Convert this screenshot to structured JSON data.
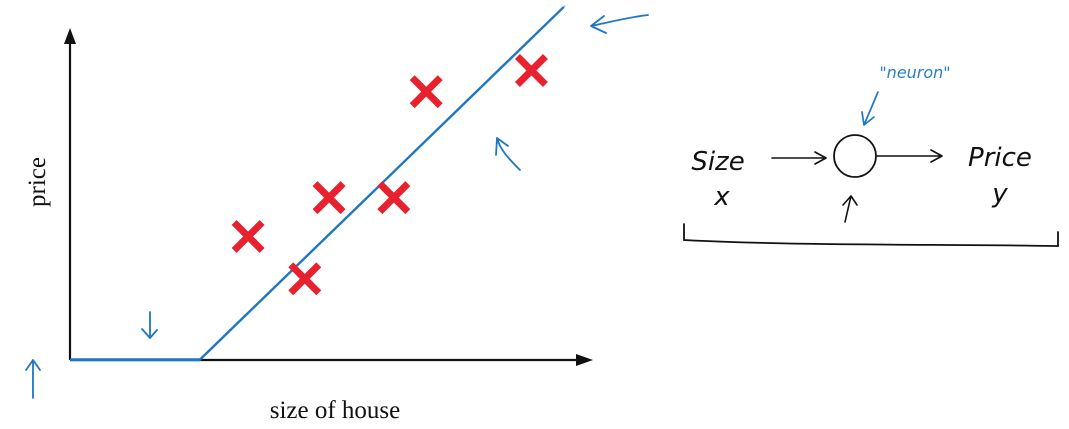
{
  "colors": {
    "ink": "#111111",
    "pen_blue": "#1f77c4",
    "marker_red": "#e8212e"
  },
  "plot": {
    "x_label": "size of house",
    "y_label": "price",
    "marker": "red-cross",
    "points": [
      {
        "x": 2.2,
        "y": 3.5
      },
      {
        "x": 2.9,
        "y": 2.3
      },
      {
        "x": 3.2,
        "y": 4.6
      },
      {
        "x": 4.0,
        "y": 4.6
      },
      {
        "x": 4.4,
        "y": 7.6
      },
      {
        "x": 5.7,
        "y": 8.2
      }
    ],
    "fit_line": [
      {
        "x": 0.0,
        "y": 0.0
      },
      {
        "x": 1.6,
        "y": 0.0
      },
      {
        "x": 6.1,
        "y": 10.0
      }
    ],
    "x_range": [
      0,
      6.3
    ],
    "y_range": [
      0,
      9.8
    ]
  },
  "neuron": {
    "label": "\"neuron\"",
    "input_label": "Size",
    "input_var": "x",
    "output_label": "Price",
    "output_var": "y"
  }
}
